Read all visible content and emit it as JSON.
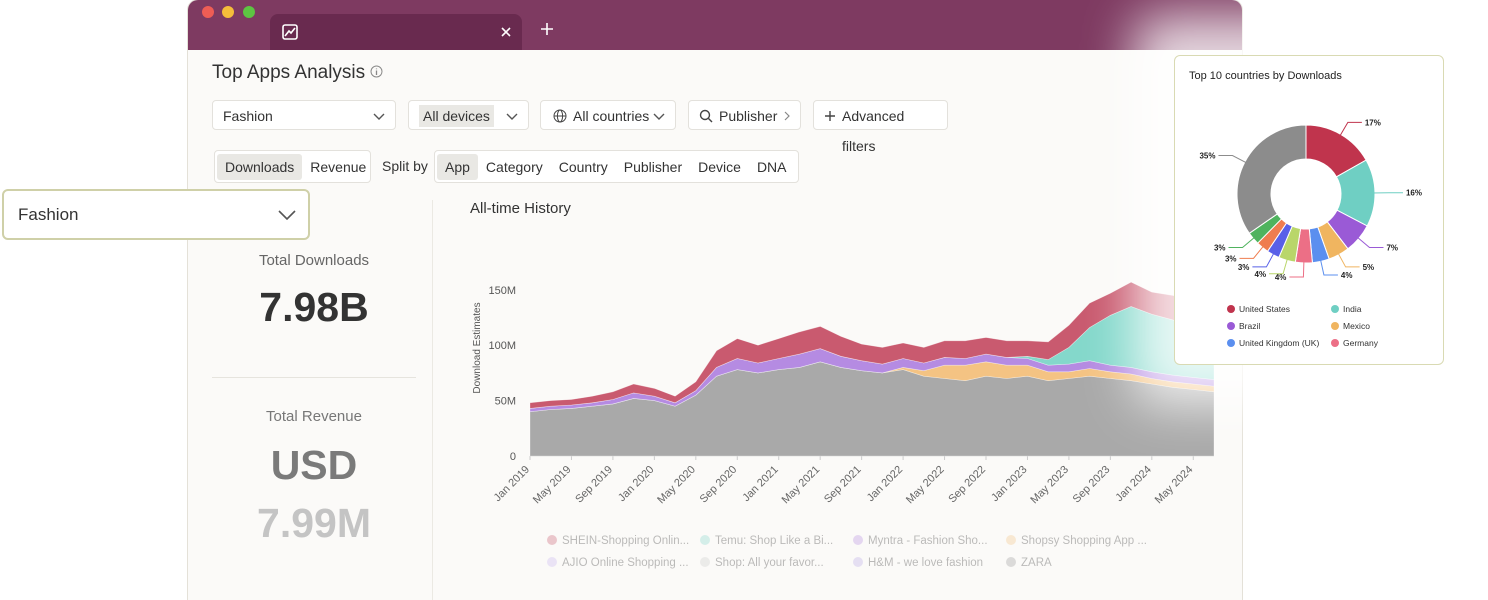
{
  "header": {
    "title": "Top Apps Analysis"
  },
  "filters": [
    "Fashion",
    "All devices",
    "All countries",
    "Publisher",
    "Advanced filters"
  ],
  "metric_tabs": [
    "Downloads",
    "Revenue"
  ],
  "split_label": "Split by",
  "split_tabs": [
    "App",
    "Category",
    "Country",
    "Publisher",
    "Device",
    "DNA"
  ],
  "stats": {
    "downloads_label": "Total Downloads",
    "downloads_value": "7.98B",
    "revenue_label": "Total Revenue",
    "revenue_currency": "USD",
    "revenue_value": "7.99M"
  },
  "dropdown_overlay": "Fashion",
  "legend_more": [
    "AJIO Online Shopping ...",
    "Shop: All your favor...",
    "H&M - we love fashion",
    "ZARA"
  ],
  "chart_data": [
    {
      "type": "stacked_area",
      "title": "All-time History",
      "y_label": "Download Estimates",
      "categories": [
        "Jan 2019",
        null,
        "May 2019",
        null,
        "Sep 2019",
        null,
        "Jan 2020",
        null,
        "May 2020",
        null,
        "Sep 2020",
        null,
        "Jan 2021",
        null,
        "May 2021",
        null,
        "Sep 2021",
        null,
        "Jan 2022",
        null,
        "May 2022",
        null,
        "Sep 2022",
        null,
        "Jan 2023",
        null,
        "May 2023",
        null,
        "Sep 2023",
        null,
        "Jan 2024",
        null,
        "May 2024",
        null
      ],
      "ylim": [
        0,
        195000000
      ],
      "yticks": [
        0,
        {
          "value": 50000000,
          "label": "50M"
        },
        {
          "value": 100000000,
          "label": "100M"
        },
        {
          "value": 150000000,
          "label": "150M"
        }
      ],
      "grid": false,
      "series": [
        {
          "name": "SHEIN-Shopping Onlin...",
          "color": "#c95a6f",
          "values": [
            5000000.0,
            5000000.0,
            5000000.0,
            6000000.0,
            7000000.0,
            8000000.0,
            7000000.0,
            6000000.0,
            8000000.0,
            15000000.0,
            18000000.0,
            16000000.0,
            18000000.0,
            20000000.0,
            20000000.0,
            18000000.0,
            15000000.0,
            15000000.0,
            14000000.0,
            14000000.0,
            15000000.0,
            16000000.0,
            15000000.0,
            15000000.0,
            14000000.0,
            16000000.0,
            20000000.0,
            22000000.0,
            20000000.0,
            22000000.0,
            20000000.0,
            22000000.0,
            25000000.0,
            24000000.0
          ]
        },
        {
          "name": "Temu: Shop Like a Bi...",
          "color": "#84d8cb",
          "values": [
            0,
            0,
            0,
            0,
            0,
            0,
            0,
            0,
            0,
            0,
            0,
            0,
            0,
            0,
            0,
            0,
            0,
            0,
            0,
            0,
            0,
            0,
            0,
            0,
            2000000.0,
            5000000.0,
            15000000.0,
            30000000.0,
            45000000.0,
            55000000.0,
            52000000.0,
            50000000.0,
            45000000.0,
            48000000.0
          ]
        },
        {
          "name": "Myntra - Fashion Sho...",
          "color": "#b58be2",
          "values": [
            3000000.0,
            3000000.0,
            3000000.0,
            3000000.0,
            4000000.0,
            5000000.0,
            4000000.0,
            3000000.0,
            4000000.0,
            8000000.0,
            10000000.0,
            9000000.0,
            10000000.0,
            12000000.0,
            12000000.0,
            10000000.0,
            9000000.0,
            8000000.0,
            8000000.0,
            7000000.0,
            7000000.0,
            6000000.0,
            7000000.0,
            7000000.0,
            6000000.0,
            6000000.0,
            7000000.0,
            7000000.0,
            6000000.0,
            6000000.0,
            6000000.0,
            6000000.0,
            6000000.0,
            6000000.0
          ]
        },
        {
          "name": "Shopsy Shopping App ...",
          "color": "#f4c383",
          "values": [
            0,
            0,
            0,
            0,
            0,
            0,
            0,
            0,
            0,
            0,
            0,
            0,
            0,
            0,
            0,
            0,
            0,
            0,
            2000000.0,
            5000000.0,
            12000000.0,
            14000000.0,
            13000000.0,
            12000000.0,
            10000000.0,
            8000000.0,
            6000000.0,
            7000000.0,
            6000000.0,
            6000000.0,
            5000000.0,
            5000000.0,
            5000000.0,
            5000000.0
          ]
        },
        {
          "color": "#a9a9a9",
          "values": [
            40000000.0,
            42000000.0,
            43000000.0,
            45000000.0,
            47000000.0,
            52000000.0,
            50000000.0,
            45000000.0,
            55000000.0,
            72000000.0,
            78000000.0,
            75000000.0,
            78000000.0,
            80000000.0,
            85000000.0,
            80000000.0,
            77000000.0,
            75000000.0,
            78000000.0,
            72000000.0,
            70000000.0,
            68000000.0,
            72000000.0,
            70000000.0,
            72000000.0,
            68000000.0,
            70000000.0,
            72000000.0,
            70000000.0,
            68000000.0,
            65000000.0,
            62000000.0,
            60000000.0,
            58000000.0
          ]
        }
      ]
    },
    {
      "type": "pie",
      "title": "Top 10 countries by Downloads",
      "categories": [
        "United States",
        "India",
        "Brazil",
        "Mexico",
        "United Kingdom (UK)",
        "Germany",
        null,
        null,
        null,
        null,
        null
      ],
      "values": [
        17,
        16,
        7,
        5,
        4,
        4,
        4,
        3,
        3,
        3,
        35
      ],
      "value_labels": [
        "17%",
        "16%",
        "7%",
        "5%",
        "4%",
        "4%",
        "4%",
        "3%",
        "3%",
        "3%",
        "35%"
      ],
      "colors": [
        "#c0344d",
        "#6fcfc3",
        "#9a5ad6",
        "#f0b560",
        "#5b8fef",
        "#ec6f86",
        "#b9d66a",
        "#5860e8",
        "#ef7d4f",
        "#4fb35e",
        "#8c8c8c"
      ]
    }
  ]
}
